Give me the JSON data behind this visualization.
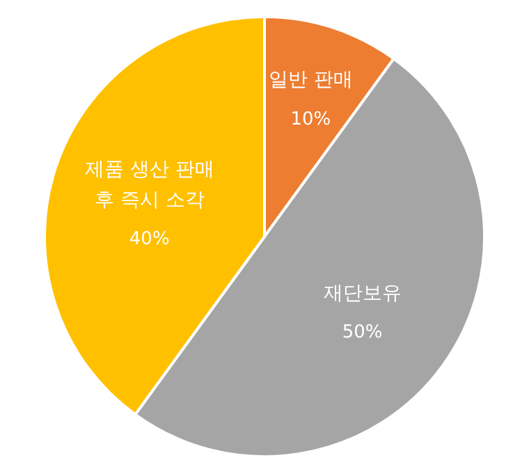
{
  "chart_data": {
    "type": "pie",
    "categories": [
      "일반 판매",
      "재단보유",
      "제품 생산 판매 후 즉시 소각"
    ],
    "values": [
      10,
      50,
      40
    ],
    "colors": [
      "#ed7d31",
      "#a5a5a5",
      "#ffc000"
    ],
    "value_labels": [
      "10%",
      "50%",
      "40%"
    ]
  }
}
